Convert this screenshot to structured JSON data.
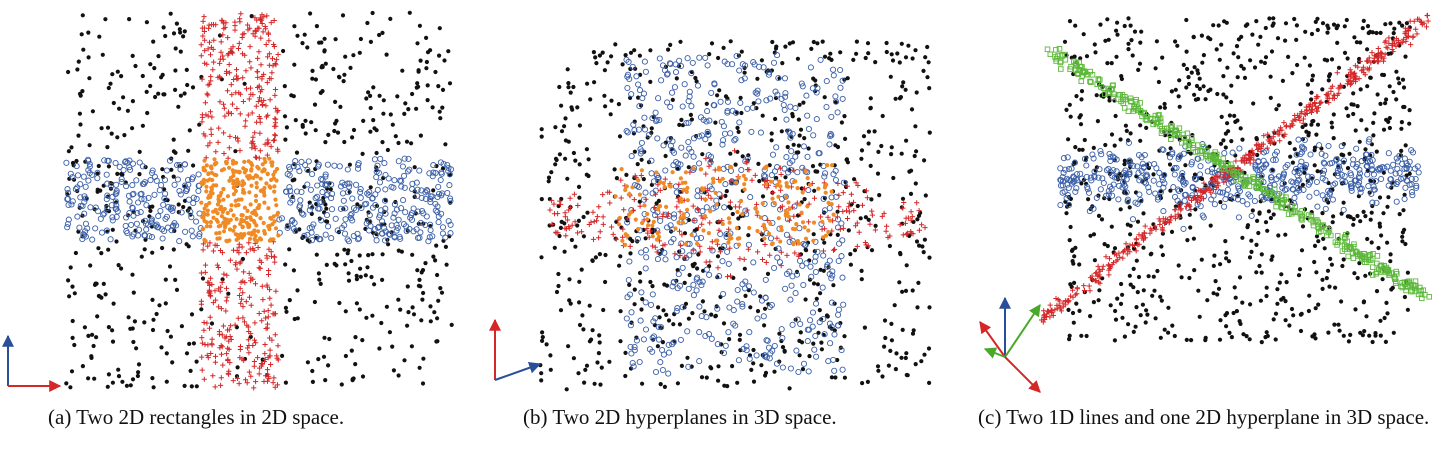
{
  "chart_data": [
    {
      "type": "scatter",
      "caption": "(a) Two 2D rectangles in 2D space.",
      "xlim": [
        -1,
        1
      ],
      "ylim": [
        -1,
        1
      ],
      "grid": false,
      "series": [
        {
          "color": "#111111",
          "marker": "dot",
          "count": 700,
          "region": {
            "x": [
              -1,
              1
            ],
            "y": [
              -1,
              1
            ]
          }
        },
        {
          "color": "#d62728",
          "marker": "plus",
          "count": 600,
          "region": {
            "x": [
              -0.3,
              0.1
            ],
            "y": [
              -1,
              1
            ]
          }
        },
        {
          "color": "#3a5fa8",
          "marker": "circle",
          "count": 600,
          "region": {
            "x": [
              -1,
              1
            ],
            "y": [
              -0.22,
              0.22
            ]
          }
        },
        {
          "color": "#f08a24",
          "marker": "dot",
          "count": 280,
          "region": {
            "x": [
              -0.3,
              0.1
            ],
            "y": [
              -0.22,
              0.22
            ]
          }
        }
      ]
    },
    {
      "type": "scatter",
      "caption": "(b) Two 2D hyperplanes in 3D space.",
      "grid": false,
      "series": [
        {
          "color": "#111111",
          "marker": "dot",
          "count": 650
        },
        {
          "color": "#3a5fa8",
          "marker": "circle",
          "count": 550
        },
        {
          "color": "#d62728",
          "marker": "plus",
          "count": 280
        },
        {
          "color": "#f08a24",
          "marker": "dot",
          "count": 180
        }
      ]
    },
    {
      "type": "scatter",
      "caption": "(c) Two 1D lines and one 2D hyperplane in 3D space.",
      "grid": false,
      "series": [
        {
          "color": "#111111",
          "marker": "dot",
          "count": 800
        },
        {
          "color": "#3a5fa8",
          "marker": "circle",
          "count": 500
        },
        {
          "color": "#d62728",
          "marker": "plus",
          "count": 450
        },
        {
          "color": "#5cb83a",
          "marker": "square",
          "count": 380
        }
      ]
    }
  ],
  "colors": {
    "black": "#111111",
    "red": "#d62728",
    "blue": "#3a5fa8",
    "orange": "#f08a24",
    "green": "#5cb83a"
  }
}
